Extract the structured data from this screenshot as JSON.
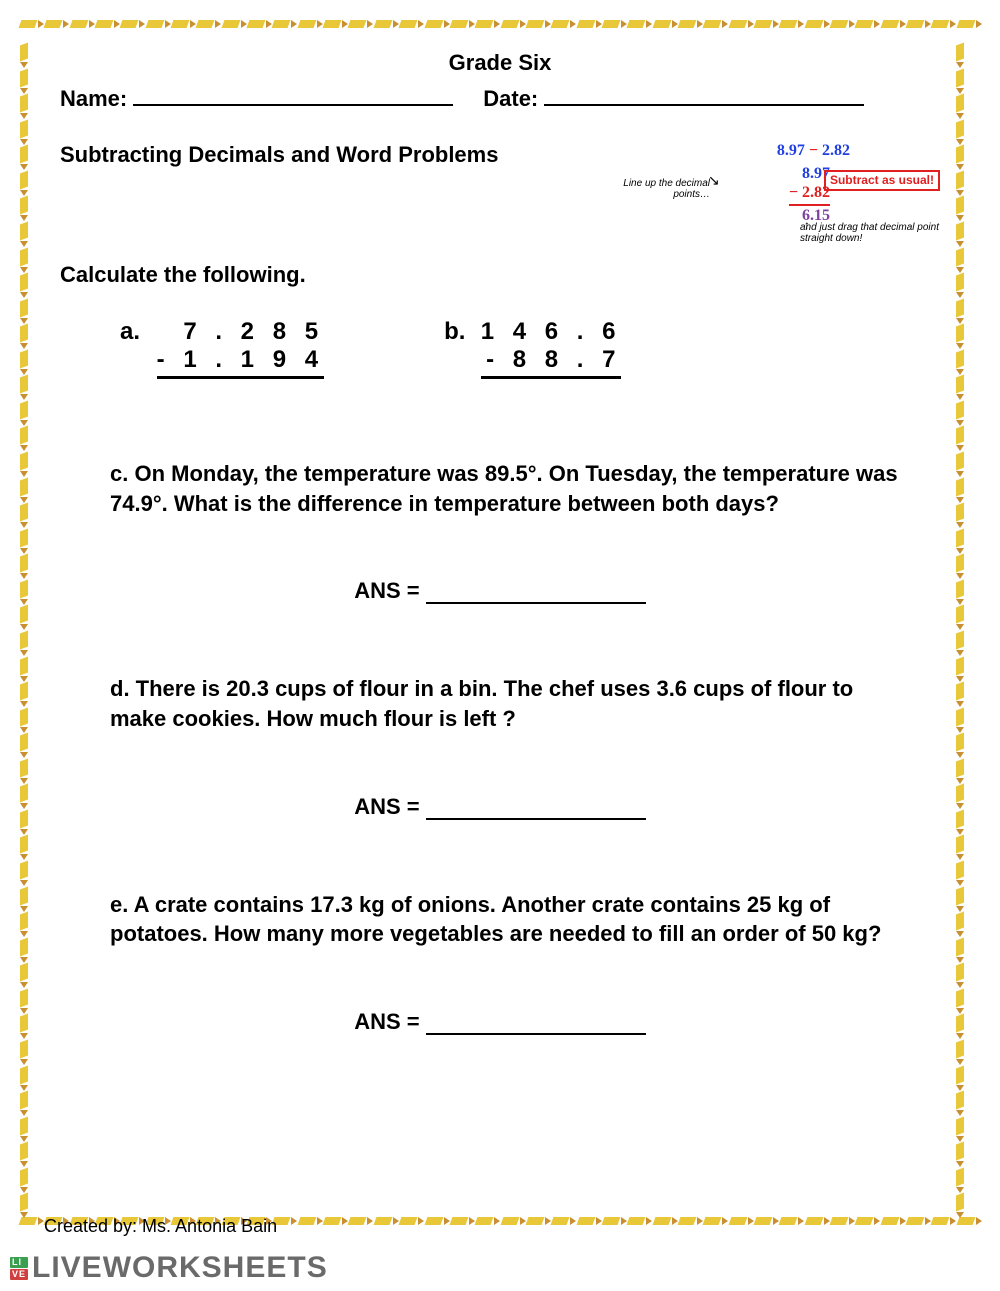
{
  "header": {
    "grade": "Grade Six",
    "name_label": "Name:",
    "date_label": "Date:"
  },
  "subtitle": "Subtracting Decimals and Word Problems",
  "example": {
    "horizontal": "8.97 − 2.82",
    "top_num": "8.97",
    "bottom_num": "− 2.82",
    "result": "6.15",
    "hint1": "Line up the decimal points…",
    "subtract_box": "Subtract as usual!",
    "hint2": "and just drag that decimal point straight down!",
    "colors": {
      "blue": "#2040e0",
      "red": "#e02020",
      "purple": "#8040a0"
    }
  },
  "instruction": "Calculate the following.",
  "problems": {
    "a": {
      "label": "a.",
      "top": "7 . 2 8 5",
      "bottom": "-  1 . 1 9 4"
    },
    "b": {
      "label": "b.",
      "top": "1 4 6 . 6",
      "bottom": "-   8 8 . 7"
    }
  },
  "word_problems": {
    "c": "c.  On Monday, the temperature was 89.5°. On Tuesday, the temperature was 74.9°. What is the difference in temperature between both days?",
    "d": "d. There is 20.3 cups of flour in a bin. The chef uses 3.6 cups of flour to make cookies. How much flour is left ?",
    "e": "e.  A crate contains 17.3 kg of onions. Another crate contains 25 kg of potatoes. How many more vegetables are needed to fill an order of 50 kg?"
  },
  "ans_label": "ANS =",
  "footer": {
    "created": "Created by: Ms. Antonia Bain",
    "watermark": "LIVEWORKSHEETS"
  },
  "border": {
    "pencil_color": "#e8c838",
    "tip_color": "#c89030",
    "count_h": 38,
    "count_v": 46
  }
}
